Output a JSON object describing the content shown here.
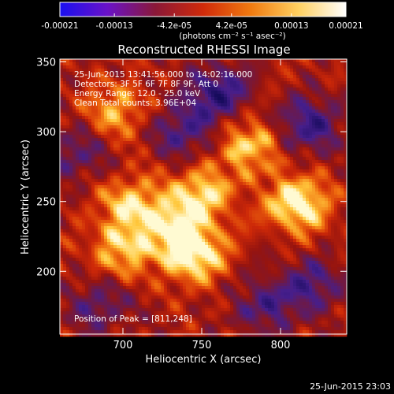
{
  "colorbar": {
    "tick_labels": [
      "-0.00021",
      "-0.00013",
      "-4.2e-05",
      "4.2e-05",
      "0.00013",
      "0.00021"
    ],
    "range": [
      -0.00021,
      0.00021
    ],
    "unit_label": "(photons cm⁻² s⁻¹ asec⁻²)",
    "colors": [
      "#1a10f0",
      "#6a12c8",
      "#8a1838",
      "#d02a0a",
      "#f07a10",
      "#ffd060",
      "#ffffff"
    ]
  },
  "chart_data": {
    "type": "heatmap",
    "title": "Reconstructed RHESSI Image",
    "xlabel": "Heliocentric X (arcsec)",
    "ylabel": "Heliocentric Y (arcsec)",
    "xlim": [
      660,
      842
    ],
    "ylim": [
      155,
      352
    ],
    "xticks": [
      700,
      750,
      800
    ],
    "yticks": [
      200,
      250,
      300,
      350
    ],
    "annotation_lines": [
      "25-Jun-2015 13:41:56.000 to 14:02:16.000",
      "Detectors: 3F 5F 6F 7F 8F 9F, Att 0",
      "Energy Range: 12.0 - 25.0 keV",
      "Clean     Total counts: 3.96E+04"
    ],
    "peak_label": "Position of Peak = [811,248]",
    "peak": [
      811,
      248
    ],
    "bright_sources": [
      {
        "x": 811,
        "y": 248,
        "value": 1.0
      },
      {
        "x": 745,
        "y": 212,
        "value": 0.95
      },
      {
        "x": 750,
        "y": 255,
        "value": 0.78
      },
      {
        "x": 705,
        "y": 248,
        "value": 0.72
      },
      {
        "x": 700,
        "y": 215,
        "value": 0.68
      },
      {
        "x": 780,
        "y": 290,
        "value": 0.72
      },
      {
        "x": 695,
        "y": 315,
        "value": 0.6
      },
      {
        "x": 732,
        "y": 232,
        "value": 0.65
      }
    ],
    "dark_regions": [
      {
        "x": 760,
        "y": 328,
        "value": -0.8
      },
      {
        "x": 818,
        "y": 305,
        "value": -0.75
      },
      {
        "x": 738,
        "y": 300,
        "value": -0.6
      },
      {
        "x": 820,
        "y": 190,
        "value": -0.6
      },
      {
        "x": 790,
        "y": 175,
        "value": -0.55
      },
      {
        "x": 670,
        "y": 285,
        "value": -0.5
      },
      {
        "x": 685,
        "y": 175,
        "value": -0.5
      }
    ]
  },
  "footer": {
    "timestamp": "25-Jun-2015 23:03"
  }
}
